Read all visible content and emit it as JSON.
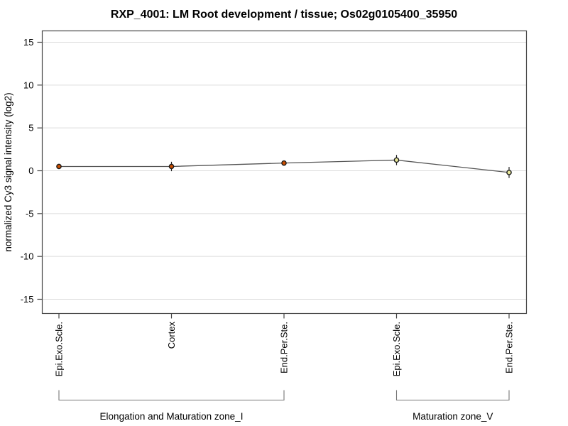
{
  "chart_data": {
    "type": "line",
    "title": "RXP_4001: LM Root development / tissue; Os02g0105400_35950",
    "ylabel": "normalized Cy3 signal intensity (log2)",
    "xlabel": "",
    "categories": [
      "Epi.Exo.Scle.",
      "Cortex",
      "End.Per.Ste.",
      "Epi.Exo.Scle.",
      "End.Per.Ste."
    ],
    "values": [
      0.5,
      0.5,
      0.9,
      1.25,
      -0.2
    ],
    "errors": [
      0.2,
      0.55,
      0.3,
      0.6,
      0.65
    ],
    "yticks": [
      -15,
      -10,
      -5,
      0,
      5,
      10,
      15
    ],
    "ylim": [
      -16.5,
      16.5
    ],
    "grid": "horizontal",
    "legend": "none",
    "groups": [
      {
        "label": "Elongation and Maturation zone_I",
        "from": 0,
        "to": 2,
        "point_color": "#cc4e00"
      },
      {
        "label": "Maturation zone_V",
        "from": 3,
        "to": 4,
        "point_color": "#e9e99a"
      }
    ],
    "colors": {
      "line": "#555555",
      "grid": "#dcdcdc",
      "frame": "#444444",
      "bracket": "#777777",
      "error_bar": "#222222",
      "marker_stroke": "#1a1a1a",
      "text": "#000000"
    }
  }
}
